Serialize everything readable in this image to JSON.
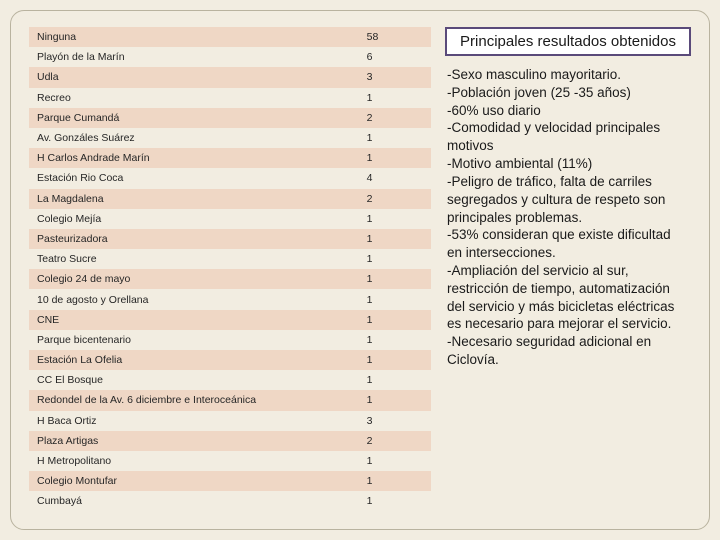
{
  "colors": {
    "page_bg": "#f2ede1",
    "frame_border": "#b9b39f",
    "row_even_bg": "#f2ede1",
    "row_odd_bg": "#efd7c5",
    "title_border": "#5a4a7a",
    "title_bg": "#ffffff",
    "text": "#1a1a1a"
  },
  "typography": {
    "table_fontsize_pt": 8,
    "title_fontsize_pt": 11,
    "results_fontsize_pt": 10,
    "font_family": "Segoe UI / Tahoma"
  },
  "table": {
    "type": "table",
    "columns": [
      "name",
      "value"
    ],
    "column_widths_pct": [
      82,
      18
    ],
    "rows": [
      {
        "name": "Ninguna",
        "value": "58"
      },
      {
        "name": "Playón de la Marín",
        "value": "6"
      },
      {
        "name": "Udla",
        "value": "3"
      },
      {
        "name": "Recreo",
        "value": "1"
      },
      {
        "name": "Parque Cumandá",
        "value": "2"
      },
      {
        "name": "Av. Gonzáles Suárez",
        "value": "1"
      },
      {
        "name": "H Carlos Andrade Marín",
        "value": "1"
      },
      {
        "name": "Estación Rio Coca",
        "value": "4"
      },
      {
        "name": "La Magdalena",
        "value": "2"
      },
      {
        "name": "Colegio Mejía",
        "value": "1"
      },
      {
        "name": "Pasteurizadora",
        "value": "1"
      },
      {
        "name": "Teatro Sucre",
        "value": "1"
      },
      {
        "name": "Colegio 24 de mayo",
        "value": "1"
      },
      {
        "name": "10 de agosto y Orellana",
        "value": "1"
      },
      {
        "name": "CNE",
        "value": "1"
      },
      {
        "name": "Parque bicentenario",
        "value": "1"
      },
      {
        "name": "Estación La Ofelia",
        "value": "1"
      },
      {
        "name": "CC El Bosque",
        "value": "1"
      },
      {
        "name": "Redondel de la Av. 6 diciembre e Interoceánica",
        "value": "1"
      },
      {
        "name": "H Baca Ortiz",
        "value": "3"
      },
      {
        "name": "Plaza Artigas",
        "value": "2"
      },
      {
        "name": "H Metropolitano",
        "value": "1"
      },
      {
        "name": "Colegio Montufar",
        "value": "1"
      },
      {
        "name": "Cumbayá",
        "value": "1"
      }
    ]
  },
  "title": "Principales resultados obtenidos",
  "results": [
    "-Sexo masculino mayoritario.",
    "-Población joven (25 -35 años)",
    "-60% uso diario",
    "-Comodidad y velocidad principales motivos",
    "-Motivo ambiental (11%)",
    "-Peligro de tráfico, falta de carriles segregados y cultura de respeto son principales problemas.",
    "-53% consideran que existe dificultad en intersecciones.",
    "-Ampliación del servicio al sur, restricción de tiempo, automatización del servicio y más bicicletas eléctricas es necesario para mejorar el servicio.",
    "-Necesario seguridad adicional en Ciclovía."
  ]
}
